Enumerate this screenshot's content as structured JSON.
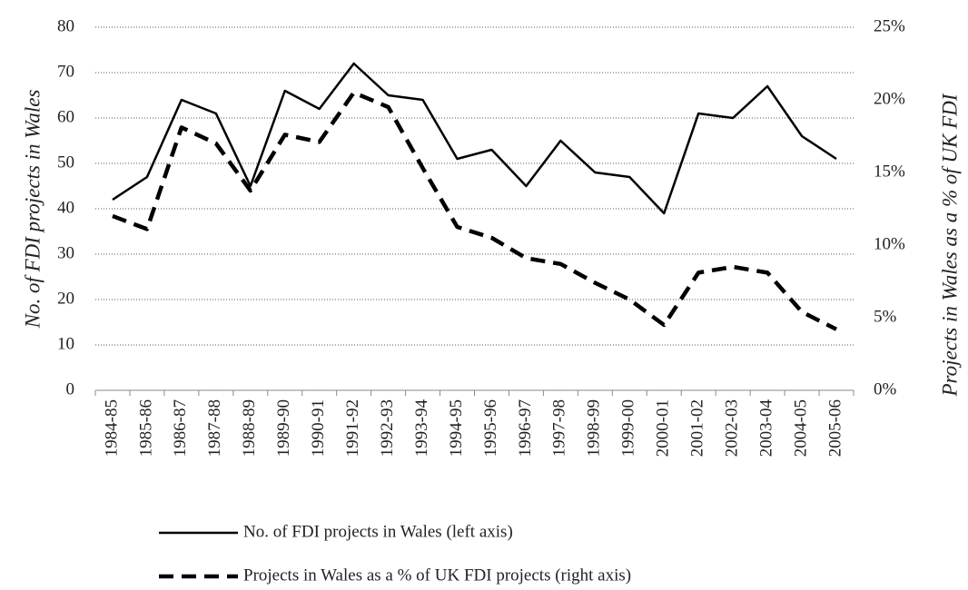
{
  "chart_data": {
    "type": "line",
    "y_label": "No. of FDI projects in Wales",
    "y2_label": "Projects in Wales as a % of UK FDI",
    "categories": [
      "1984-85",
      "1985-86",
      "1986-87",
      "1987-88",
      "1988-89",
      "1989-90",
      "1990-91",
      "1991-92",
      "1992-93",
      "1993-94",
      "1994-95",
      "1995-96",
      "1996-97",
      "1997-98",
      "1998-99",
      "1999-00",
      "2000-01",
      "2001-02",
      "2002-03",
      "2003-04",
      "2004-05",
      "2005-06"
    ],
    "series": [
      {
        "name": "No. of FDI projects in Wales (left axis)",
        "color": "#000000",
        "linestyle": "solid",
        "axis": "y",
        "values": [
          42,
          47,
          64,
          61,
          45,
          66,
          62,
          72,
          65,
          64,
          51,
          53,
          45,
          55,
          48,
          47,
          39,
          61,
          60,
          67,
          56,
          51
        ]
      },
      {
        "name": "Projects in Wales as a % of UK FDI projects (right axis)",
        "color": "#000000",
        "linestyle": "dashed",
        "axis": "y2",
        "values": [
          12.0,
          11.1,
          18.1,
          17.0,
          13.75,
          17.6,
          17.1,
          20.5,
          19.5,
          15.3,
          11.25,
          10.5,
          9.1,
          8.7,
          7.4,
          6.25,
          4.5,
          8.1,
          8.5,
          8.1,
          5.4,
          4.2
        ]
      }
    ],
    "ylim": [
      0,
      80
    ],
    "yticks": [
      0,
      10,
      20,
      30,
      40,
      50,
      60,
      70,
      80
    ],
    "y2lim": [
      0,
      25
    ],
    "y2ticks": [
      {
        "value": 0,
        "label": "0%"
      },
      {
        "value": 5,
        "label": "5%"
      },
      {
        "value": 10,
        "label": "10%"
      },
      {
        "value": 15,
        "label": "15%"
      },
      {
        "value": 20,
        "label": "20%"
      },
      {
        "value": 25,
        "label": "25%"
      }
    ],
    "grid": true,
    "legend": "bottom"
  }
}
